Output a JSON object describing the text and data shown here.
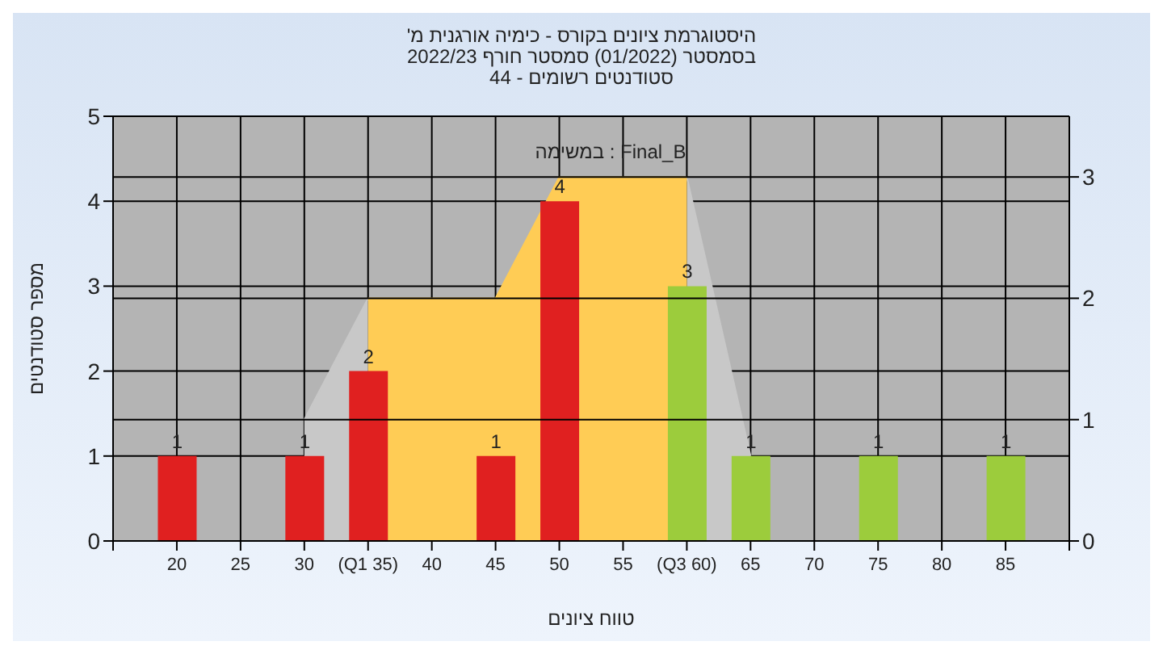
{
  "chart_data": {
    "type": "bar",
    "title": "'היסטוגרמת ציונים בקורס - כימיה אורגנית מ",
    "subtitle": "בסמסטר (01/2022) סמסטר חורף 2022/23\nסטודנטים רשומים - 44",
    "xlabel": "טווח ציונים",
    "ylabel": "מספר סטודנטים",
    "annotations": [
      "במשימה : Final_B"
    ],
    "x": [
      20,
      30,
      35,
      45,
      50,
      60,
      65,
      75,
      85
    ],
    "series": [
      {
        "type": "area",
        "color": "#c8c8c8",
        "axis": "y2",
        "x": [
          30,
          35,
          45,
          50,
          60,
          65
        ],
        "values": [
          1,
          2,
          null,
          null,
          3,
          0.7
        ]
      },
      {
        "type": "area",
        "color": "#ffcc55",
        "axis": "y2",
        "x": [
          35,
          45,
          50,
          60
        ],
        "values": [
          2,
          2,
          3,
          3
        ]
      },
      {
        "colors": [
          "#e02020",
          "#e02020",
          "#e02020",
          "#e02020",
          "#e02020",
          "#9ccc3c",
          "#9ccc3c",
          "#9ccc3c",
          "#9ccc3c"
        ],
        "values": [
          1,
          1,
          2,
          1,
          4,
          3,
          1,
          1,
          1
        ],
        "value_labels": [
          "1",
          "1",
          "2",
          "1",
          "4",
          "3",
          "1",
          "1",
          "1"
        ]
      }
    ],
    "xlim": [
      15,
      90
    ],
    "xticks": [
      {
        "value": 15,
        "label": null
      },
      20,
      25,
      30,
      {
        "value": 35,
        "label": "(Q1 35)"
      },
      40,
      45,
      50,
      55,
      {
        "value": 60,
        "label": "(Q3 60)"
      },
      65,
      70,
      75,
      80,
      85,
      {
        "value": 90,
        "label": null
      }
    ],
    "ylim": [
      0,
      5
    ],
    "yticks": [
      0,
      1,
      2,
      3,
      4,
      5
    ],
    "y2lim": [
      0,
      3.5
    ],
    "y2ticks": [
      0,
      1,
      2,
      3
    ],
    "grid": true
  }
}
